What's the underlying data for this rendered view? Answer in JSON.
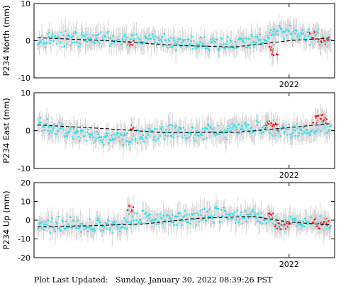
{
  "footer": {
    "label": "Plot Last Updated:",
    "value": "Sunday, January 30, 2022 08:39:26 PST"
  },
  "colors": {
    "point": "#22e0ee",
    "recent_point": "#ee1111",
    "error_bar": "#d4d4d4",
    "trend": "#000000",
    "axis": "#000000"
  },
  "chart_data": [
    {
      "type": "scatter",
      "ylabel": "P234 North (mm)",
      "xlabel": "",
      "ylim": [
        -10,
        10
      ],
      "yticks": [
        -10,
        0,
        10
      ],
      "xlim": [
        2020.6,
        2022.25
      ],
      "xtick_label": "2022",
      "xtick_value": 2022.0,
      "grid": false,
      "legend": "none",
      "series": [
        {
          "kind": "points",
          "x": [
            2020.62,
            2020.75,
            2020.9,
            2021.05,
            2021.2,
            2021.35,
            2021.5,
            2021.65,
            2021.8,
            2021.88,
            2021.95,
            2022.05,
            2022.2
          ],
          "y": [
            0.5,
            0.5,
            0.5,
            0,
            0,
            -0.5,
            -1,
            -1,
            -0.5,
            1.5,
            2.5,
            1.5,
            0.5
          ]
        },
        {
          "kind": "recent-points",
          "x": [
            2021.13,
            2021.9,
            2021.92,
            2022.13,
            2022.17,
            2022.2
          ],
          "y": [
            -1,
            -2,
            -3,
            1.5,
            0,
            0
          ]
        },
        {
          "kind": "trend",
          "x": [
            2020.62,
            2021.0,
            2021.4,
            2021.7,
            2022.0,
            2022.22
          ],
          "y": [
            0.8,
            0.0,
            -1.3,
            -1.7,
            0.0,
            0.7
          ]
        }
      ]
    },
    {
      "type": "scatter",
      "ylabel": "P234 East (mm)",
      "xlabel": "",
      "ylim": [
        -10,
        10
      ],
      "yticks": [
        -10,
        0,
        10
      ],
      "xlim": [
        2020.6,
        2022.25
      ],
      "xtick_label": "2022",
      "xtick_value": 2022.0,
      "grid": false,
      "legend": "none",
      "series": [
        {
          "kind": "points",
          "x": [
            2020.62,
            2020.75,
            2020.9,
            2021.05,
            2021.2,
            2021.35,
            2021.5,
            2021.65,
            2021.8,
            2021.88,
            2021.95,
            2022.05,
            2022.2
          ],
          "y": [
            1.5,
            0,
            -1.5,
            -2,
            -1,
            -0.5,
            -0.5,
            0,
            0.5,
            1,
            0,
            -0.5,
            1
          ]
        },
        {
          "kind": "recent-points",
          "x": [
            2021.13,
            2021.89,
            2021.91,
            2021.93,
            2022.14,
            2022.17,
            2022.2
          ],
          "y": [
            1,
            1.5,
            2,
            1,
            3,
            3.5,
            3
          ]
        },
        {
          "kind": "trend",
          "x": [
            2020.62,
            2021.0,
            2021.3,
            2021.7,
            2022.0,
            2022.22
          ],
          "y": [
            1.5,
            0.5,
            -0.5,
            -0.5,
            0.8,
            1.8
          ]
        }
      ]
    },
    {
      "type": "scatter",
      "ylabel": "P234 Up (mm)",
      "xlabel": "",
      "ylim": [
        -20,
        20
      ],
      "yticks": [
        -20,
        -10,
        0,
        10,
        20
      ],
      "xlim": [
        2020.6,
        2022.25
      ],
      "xtick_label": "2022",
      "xtick_value": 2022.0,
      "grid": false,
      "legend": "none",
      "series": [
        {
          "kind": "points",
          "x": [
            2020.62,
            2020.75,
            2020.9,
            2021.05,
            2021.2,
            2021.35,
            2021.5,
            2021.65,
            2021.8,
            2021.88,
            2021.95,
            2022.05,
            2022.2
          ],
          "y": [
            -4,
            -2,
            -3,
            -3,
            2,
            0,
            2,
            3,
            2,
            0,
            -2,
            0,
            -2
          ]
        },
        {
          "kind": "recent-points",
          "x": [
            2021.13,
            2021.9,
            2021.94,
            2021.99,
            2022.13,
            2022.17,
            2022.2
          ],
          "y": [
            6,
            2,
            -3,
            -3,
            -1,
            -3,
            -1
          ]
        },
        {
          "kind": "trend",
          "x": [
            2020.62,
            2020.9,
            2021.2,
            2021.5,
            2021.8,
            2022.0,
            2022.22
          ],
          "y": [
            -3.5,
            -3.0,
            -2.0,
            1.0,
            2.0,
            -1.0,
            -2.5
          ]
        }
      ]
    }
  ]
}
